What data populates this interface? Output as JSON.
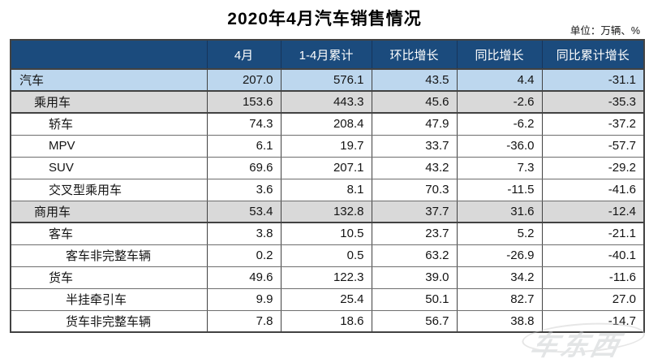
{
  "title": "2020年4月汽车销售情况",
  "unit_note": "单位：万辆、%",
  "watermark": "车东西",
  "colors": {
    "header_bg": "#1B4B7D",
    "header_text": "#FFFFFF",
    "total_row_bg": "#BDD7EE",
    "section_row_bg": "#D9D9D9",
    "border_dark": "#424242",
    "border_light": "#6E6E6E"
  },
  "chart_data": {
    "type": "table",
    "title": "2020年4月汽车销售情况",
    "unit": "万辆、%",
    "columns": [
      "",
      "4月",
      "1-4月累计",
      "环比增长",
      "同比增长",
      "同比累计增长"
    ],
    "rows": [
      {
        "label": "汽车",
        "indent": 0,
        "style": "total",
        "values": [
          "207.0",
          "576.1",
          "43.5",
          "4.4",
          "-31.1"
        ]
      },
      {
        "label": "乘用车",
        "indent": 1,
        "style": "section",
        "values": [
          "153.6",
          "443.3",
          "45.6",
          "-2.6",
          "-35.3"
        ]
      },
      {
        "label": "轿车",
        "indent": 2,
        "style": "plain",
        "values": [
          "74.3",
          "208.4",
          "47.9",
          "-6.2",
          "-37.2"
        ]
      },
      {
        "label": "MPV",
        "indent": 2,
        "style": "plain",
        "values": [
          "6.1",
          "19.7",
          "33.7",
          "-36.0",
          "-57.7"
        ]
      },
      {
        "label": "SUV",
        "indent": 2,
        "style": "plain",
        "values": [
          "69.6",
          "207.1",
          "43.2",
          "7.3",
          "-29.2"
        ]
      },
      {
        "label": "交叉型乘用车",
        "indent": 2,
        "style": "plain",
        "values": [
          "3.6",
          "8.1",
          "70.3",
          "-11.5",
          "-41.6"
        ]
      },
      {
        "label": "商用车",
        "indent": 1,
        "style": "section",
        "values": [
          "53.4",
          "132.8",
          "37.7",
          "31.6",
          "-12.4"
        ]
      },
      {
        "label": "客车",
        "indent": 2,
        "style": "plain",
        "values": [
          "3.8",
          "10.5",
          "23.7",
          "5.2",
          "-21.1"
        ]
      },
      {
        "label": "客车非完整车辆",
        "indent": 3,
        "style": "plain",
        "values": [
          "0.2",
          "0.5",
          "63.2",
          "-26.9",
          "-40.1"
        ]
      },
      {
        "label": "货车",
        "indent": 2,
        "style": "plain",
        "values": [
          "49.6",
          "122.3",
          "39.0",
          "34.2",
          "-11.6"
        ]
      },
      {
        "label": "半挂牵引车",
        "indent": 3,
        "style": "plain",
        "values": [
          "9.9",
          "25.4",
          "50.1",
          "82.7",
          "27.0"
        ]
      },
      {
        "label": "货车非完整车辆",
        "indent": 3,
        "style": "plain",
        "values": [
          "7.8",
          "18.6",
          "56.7",
          "38.8",
          "-14.7"
        ]
      }
    ]
  }
}
